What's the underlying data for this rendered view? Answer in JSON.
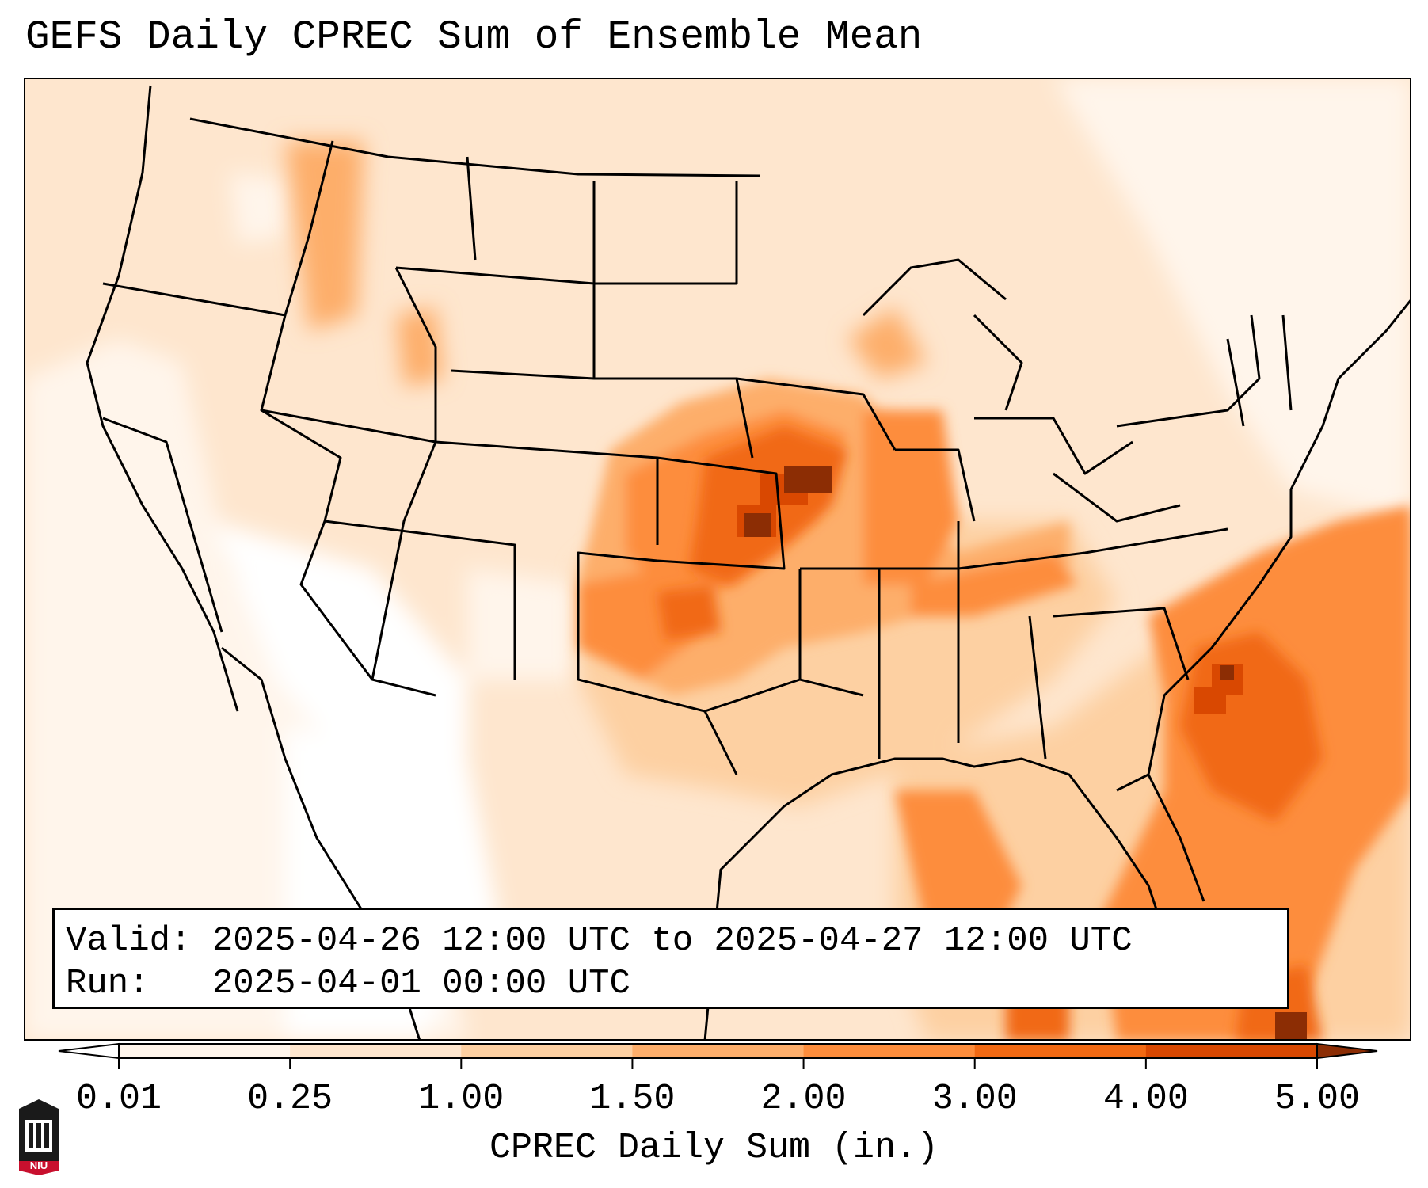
{
  "title": "GEFS Daily CPREC Sum of Ensemble Mean",
  "info": {
    "valid_line": "Valid: 2025-04-26 12:00 UTC to 2025-04-27 12:00 UTC",
    "run_line": "Run:   2025-04-01 00:00 UTC"
  },
  "colorbar": {
    "label": "CPREC Daily Sum (in.)",
    "ticks": [
      "0.01",
      "0.25",
      "1.00",
      "1.50",
      "2.00",
      "3.00",
      "4.00",
      "5.00"
    ],
    "colors": [
      "#fff5eb",
      "#fee6ce",
      "#fdd0a2",
      "#fdae6b",
      "#fd8d3c",
      "#f16913",
      "#d94801",
      "#8c2d04"
    ]
  },
  "logo": {
    "text": "NIU",
    "colors": {
      "red": "#c8102e",
      "dark": "#1a1a1a"
    }
  }
}
